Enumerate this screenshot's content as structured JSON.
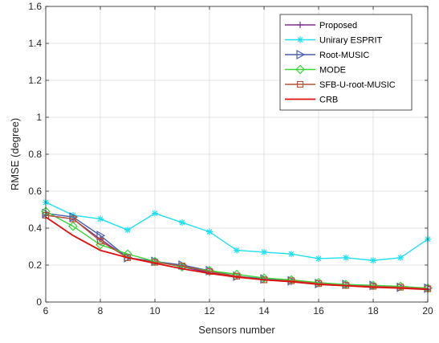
{
  "chart_data": {
    "type": "line",
    "title": "",
    "xlabel": "Sensors number",
    "ylabel": "RMSE (degree)",
    "xlim": [
      6,
      20
    ],
    "ylim": [
      0,
      1.6
    ],
    "xticks": [
      6,
      8,
      10,
      12,
      14,
      16,
      18,
      20
    ],
    "yticks": [
      0,
      0.2,
      0.4,
      0.6,
      0.8,
      1,
      1.2,
      1.4,
      1.6
    ],
    "ytick_labels": [
      "0",
      "0.2",
      "0.4",
      "0.6",
      "0.8",
      "1",
      "1.2",
      "1.4",
      "1.6"
    ],
    "grid": true,
    "legend_position": "top-right",
    "x": [
      6,
      7,
      8,
      9,
      10,
      11,
      12,
      13,
      14,
      15,
      16,
      17,
      18,
      19,
      20
    ],
    "series": [
      {
        "name": "Proposed",
        "color": "#7e2f8e",
        "marker": "plus",
        "values": [
          0.47,
          0.45,
          0.34,
          0.24,
          0.22,
          0.19,
          0.16,
          0.14,
          0.12,
          0.11,
          0.1,
          0.09,
          0.085,
          0.08,
          0.07
        ]
      },
      {
        "name": "Unirary ESPRIT",
        "color": "#20e0f0",
        "marker": "asterisk",
        "values": [
          0.54,
          0.47,
          0.45,
          0.39,
          0.48,
          0.43,
          0.38,
          0.28,
          0.27,
          0.26,
          0.235,
          0.24,
          0.225,
          0.24,
          0.34
        ]
      },
      {
        "name": "Root-MUSIC",
        "color": "#4a5fa8",
        "marker": "triangle-right",
        "values": [
          0.48,
          0.46,
          0.36,
          0.24,
          0.22,
          0.2,
          0.17,
          0.14,
          0.125,
          0.115,
          0.1,
          0.095,
          0.09,
          0.08,
          0.075
        ]
      },
      {
        "name": "MODE",
        "color": "#3ad63a",
        "marker": "diamond",
        "values": [
          0.49,
          0.41,
          0.31,
          0.26,
          0.22,
          0.19,
          0.17,
          0.15,
          0.13,
          0.12,
          0.105,
          0.095,
          0.09,
          0.085,
          0.075
        ]
      },
      {
        "name": "SFB-U-root-MUSIC",
        "color": "#b5563a",
        "marker": "square",
        "values": [
          0.47,
          0.45,
          0.33,
          0.24,
          0.215,
          0.195,
          0.165,
          0.14,
          0.12,
          0.115,
          0.1,
          0.09,
          0.085,
          0.08,
          0.072
        ]
      },
      {
        "name": "CRB",
        "color": "#e01010",
        "marker": "none",
        "values": [
          0.46,
          0.36,
          0.28,
          0.24,
          0.21,
          0.18,
          0.155,
          0.135,
          0.12,
          0.11,
          0.095,
          0.088,
          0.08,
          0.075,
          0.068
        ]
      }
    ]
  }
}
